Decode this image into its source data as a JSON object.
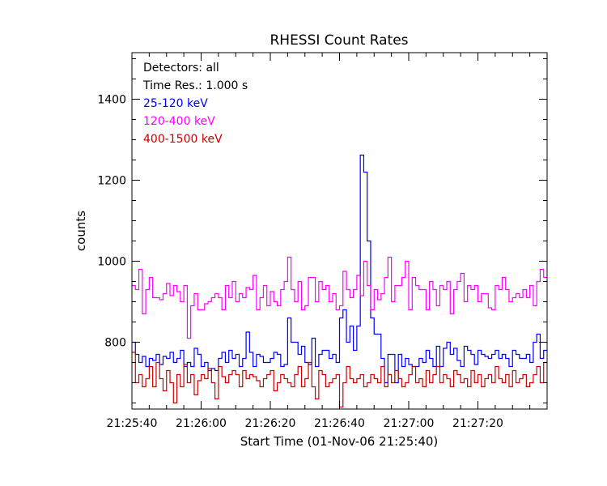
{
  "chart_data": {
    "type": "line",
    "title": "RHESSI Count Rates",
    "xlabel": "Start Time (01-Nov-06 21:25:40)",
    "ylabel": "counts",
    "x_unit": "seconds after 21:25:40",
    "xlim": [
      0,
      120
    ],
    "ylim": [
      635,
      1515
    ],
    "x_ticks": [
      {
        "value": 0,
        "label": "21:25:40"
      },
      {
        "value": 20,
        "label": "21:26:00"
      },
      {
        "value": 40,
        "label": "21:26:20"
      },
      {
        "value": 60,
        "label": "21:26:40"
      },
      {
        "value": 80,
        "label": "21:27:00"
      },
      {
        "value": 100,
        "label": "21:27:20"
      }
    ],
    "y_ticks": [
      800,
      1000,
      1200,
      1400
    ],
    "annotations": [
      "Detectors: all",
      "Time Res.: 1.000 s"
    ],
    "grid": false,
    "legend": "top-left",
    "series": [
      {
        "name": "25-120 keV",
        "color": "#0000ff",
        "step": 1,
        "values": [
          800,
          770,
          750,
          765,
          740,
          760,
          755,
          770,
          745,
          765,
          760,
          775,
          750,
          760,
          780,
          740,
          750,
          740,
          785,
          770,
          740,
          750,
          730,
          735,
          730,
          760,
          775,
          750,
          780,
          760,
          770,
          740,
          760,
          825,
          775,
          740,
          770,
          765,
          750,
          750,
          760,
          775,
          770,
          740,
          745,
          860,
          800,
          800,
          770,
          790,
          750,
          745,
          810,
          740,
          770,
          780,
          780,
          760,
          770,
          750,
          860,
          880,
          800,
          840,
          780,
          840,
          1262,
          1220,
          1050,
          860,
          820,
          820,
          760,
          700,
          770,
          770,
          700,
          770,
          740,
          760,
          745,
          740,
          740,
          760,
          750,
          780,
          760,
          740,
          790,
          740,
          785,
          800,
          770,
          785,
          755,
          740,
          790,
          780,
          770,
          745,
          780,
          770,
          765,
          760,
          770,
          780,
          760,
          770,
          760,
          740,
          780,
          770,
          760,
          760,
          770,
          750,
          800,
          820,
          760,
          780
        ]
      },
      {
        "name": "120-400 keV",
        "color": "#ff00ff",
        "step": 1,
        "values": [
          940,
          930,
          980,
          870,
          930,
          960,
          910,
          910,
          905,
          920,
          945,
          915,
          940,
          925,
          900,
          940,
          810,
          890,
          920,
          880,
          880,
          895,
          900,
          910,
          920,
          910,
          880,
          940,
          910,
          950,
          900,
          920,
          910,
          935,
          930,
          965,
          880,
          910,
          940,
          890,
          925,
          900,
          890,
          930,
          950,
          1010,
          930,
          900,
          950,
          880,
          890,
          960,
          960,
          900,
          950,
          930,
          940,
          900,
          920,
          880,
          890,
          975,
          930,
          910,
          930,
          965,
          915,
          1000,
          940,
          880,
          930,
          905,
          920,
          960,
          1010,
          900,
          940,
          940,
          960,
          1000,
          880,
          960,
          940,
          930,
          930,
          880,
          950,
          930,
          890,
          940,
          930,
          950,
          870,
          930,
          950,
          970,
          900,
          940,
          930,
          940,
          900,
          920,
          920,
          885,
          880,
          940,
          930,
          960,
          930,
          900,
          910,
          920,
          910,
          930,
          910,
          940,
          890,
          950,
          980,
          960
        ]
      },
      {
        "name": "400-1500 keV",
        "color": "#cc0000",
        "step": 1,
        "values": [
          775,
          700,
          720,
          690,
          710,
          740,
          690,
          750,
          710,
          680,
          730,
          700,
          650,
          720,
          690,
          745,
          700,
          720,
          670,
          705,
          720,
          710,
          735,
          700,
          660,
          740,
          715,
          700,
          720,
          730,
          720,
          690,
          730,
          710,
          720,
          715,
          705,
          690,
          710,
          720,
          730,
          680,
          700,
          720,
          710,
          700,
          690,
          720,
          740,
          690,
          710,
          750,
          690,
          660,
          730,
          720,
          690,
          700,
          710,
          720,
          640,
          700,
          740,
          710,
          700,
          710,
          720,
          690,
          700,
          720,
          710,
          700,
          740,
          690,
          720,
          700,
          730,
          710,
          690,
          700,
          720,
          740,
          700,
          710,
          690,
          730,
          700,
          720,
          740,
          700,
          720,
          710,
          690,
          730,
          720,
          700,
          710,
          690,
          730,
          700,
          720,
          690,
          710,
          720,
          700,
          740,
          710,
          700,
          720,
          690,
          730,
          700,
          710,
          720,
          690,
          700,
          720,
          740,
          700,
          750
        ]
      }
    ]
  }
}
